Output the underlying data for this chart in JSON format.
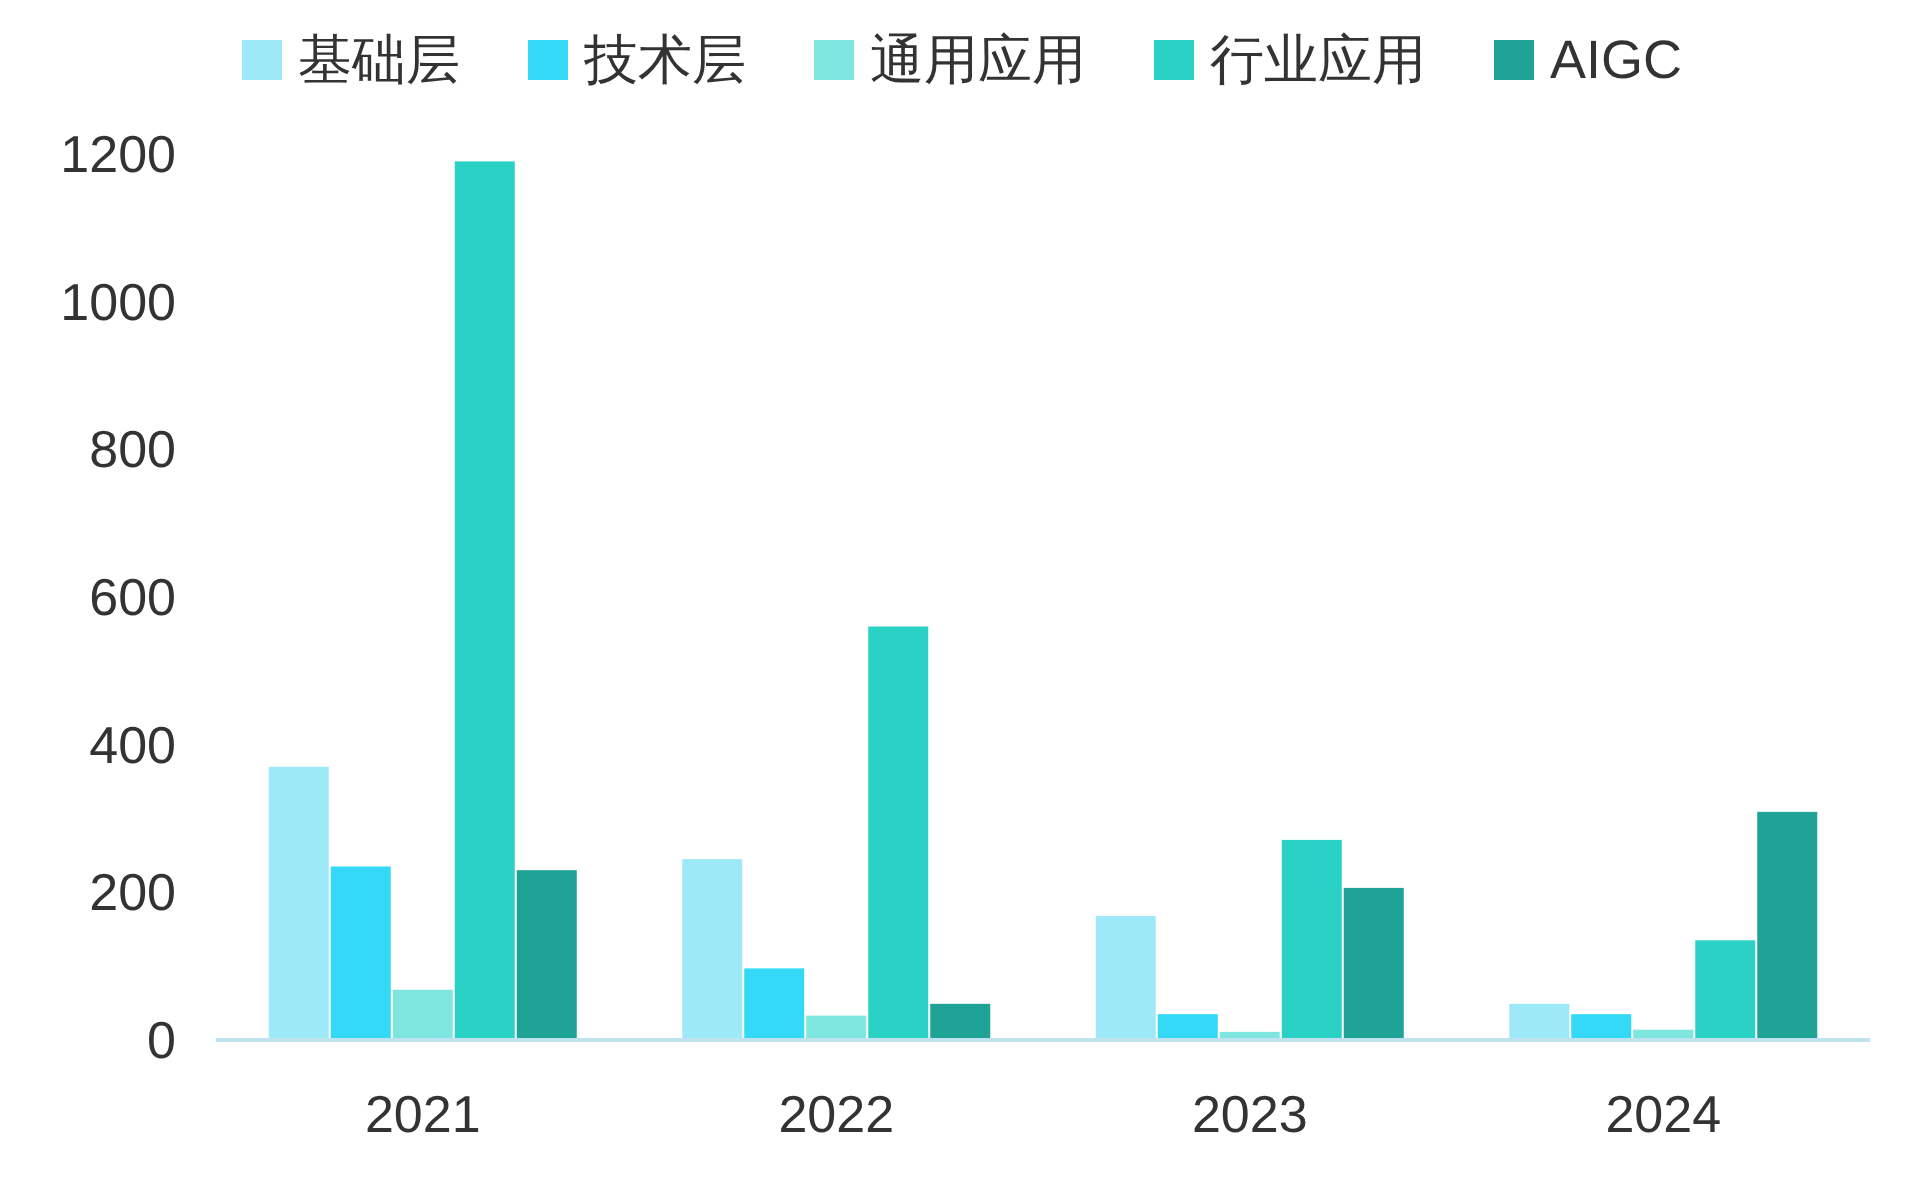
{
  "chart_data": {
    "type": "bar",
    "categories": [
      "2021",
      "2022",
      "2023",
      "2024"
    ],
    "series": [
      {
        "name": "基础层",
        "color": "#9ee9f8",
        "values": [
          370,
          245,
          168,
          49
        ]
      },
      {
        "name": "技术层",
        "color": "#33d9f6",
        "values": [
          235,
          97,
          35,
          35
        ]
      },
      {
        "name": "通用应用",
        "color": "#7fe6df",
        "values": [
          68,
          33,
          11,
          14
        ]
      },
      {
        "name": "行业应用",
        "color": "#2ad2c6",
        "values": [
          1190,
          560,
          271,
          135
        ]
      },
      {
        "name": "AIGC",
        "color": "#1fa397",
        "values": [
          230,
          49,
          206,
          309
        ]
      }
    ],
    "ylim": [
      0,
      1200
    ],
    "yticks": [
      0,
      200,
      400,
      600,
      800,
      1000,
      1200
    ],
    "legend": "top",
    "grid": false
  }
}
